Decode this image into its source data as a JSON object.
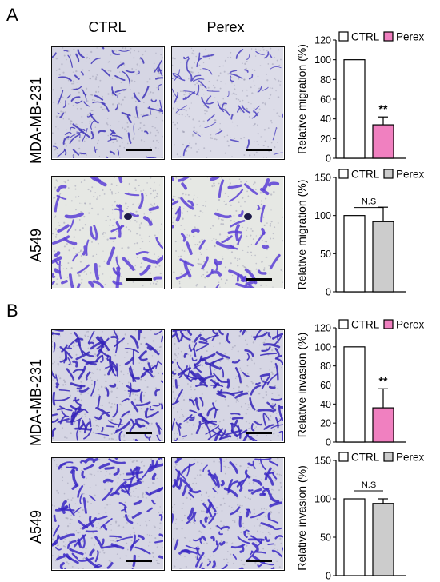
{
  "panel_a": {
    "letter": "A",
    "col_heads": [
      "CTRL",
      "Perex"
    ],
    "rows": [
      "MDA-MB-231",
      "A549"
    ]
  },
  "panel_b": {
    "letter": "B",
    "rows": [
      "MDA-MB-231",
      "A549"
    ]
  },
  "colors": {
    "ctrl": "#ffffff",
    "perex_pink": "#f080c0",
    "perex_gray": "#cccccc",
    "stain": "#3b2fc0",
    "background_light": "#d8d8e8"
  },
  "chart_data": [
    {
      "type": "bar",
      "ylabel": "Relative migration (%)",
      "categories": [
        "CTRL",
        "Perex"
      ],
      "values": [
        100,
        34
      ],
      "errors": [
        0,
        8
      ],
      "ylim": [
        0,
        120
      ],
      "yticks": [
        0,
        20,
        40,
        60,
        80,
        100,
        120
      ],
      "legend": [
        "CTRL",
        "Perex"
      ],
      "significance": "**",
      "perex_color": "#f080c0"
    },
    {
      "type": "bar",
      "ylabel": "Relative migration (%)",
      "categories": [
        "CTRL",
        "Perex"
      ],
      "values": [
        100,
        92
      ],
      "errors": [
        0,
        19
      ],
      "ylim": [
        0,
        150
      ],
      "yticks": [
        0,
        50,
        100,
        150
      ],
      "legend": [
        "CTRL",
        "Perex"
      ],
      "significance": "N.S",
      "perex_color": "#cccccc"
    },
    {
      "type": "bar",
      "ylabel": "Relative invasion (%)",
      "categories": [
        "CTRL",
        "Perex"
      ],
      "values": [
        100,
        36
      ],
      "errors": [
        0,
        20
      ],
      "ylim": [
        0,
        120
      ],
      "yticks": [
        0,
        20,
        40,
        60,
        80,
        100,
        120
      ],
      "legend": [
        "CTRL",
        "Perex"
      ],
      "significance": "**",
      "perex_color": "#f080c0"
    },
    {
      "type": "bar",
      "ylabel": "Relative invasion (%)",
      "categories": [
        "CTRL",
        "Perex"
      ],
      "values": [
        100,
        94
      ],
      "errors": [
        0,
        6
      ],
      "ylim": [
        0,
        150
      ],
      "yticks": [
        0,
        50,
        100,
        150
      ],
      "legend": [
        "CTRL",
        "Perex"
      ],
      "significance": "N.S",
      "perex_color": "#cccccc"
    }
  ]
}
